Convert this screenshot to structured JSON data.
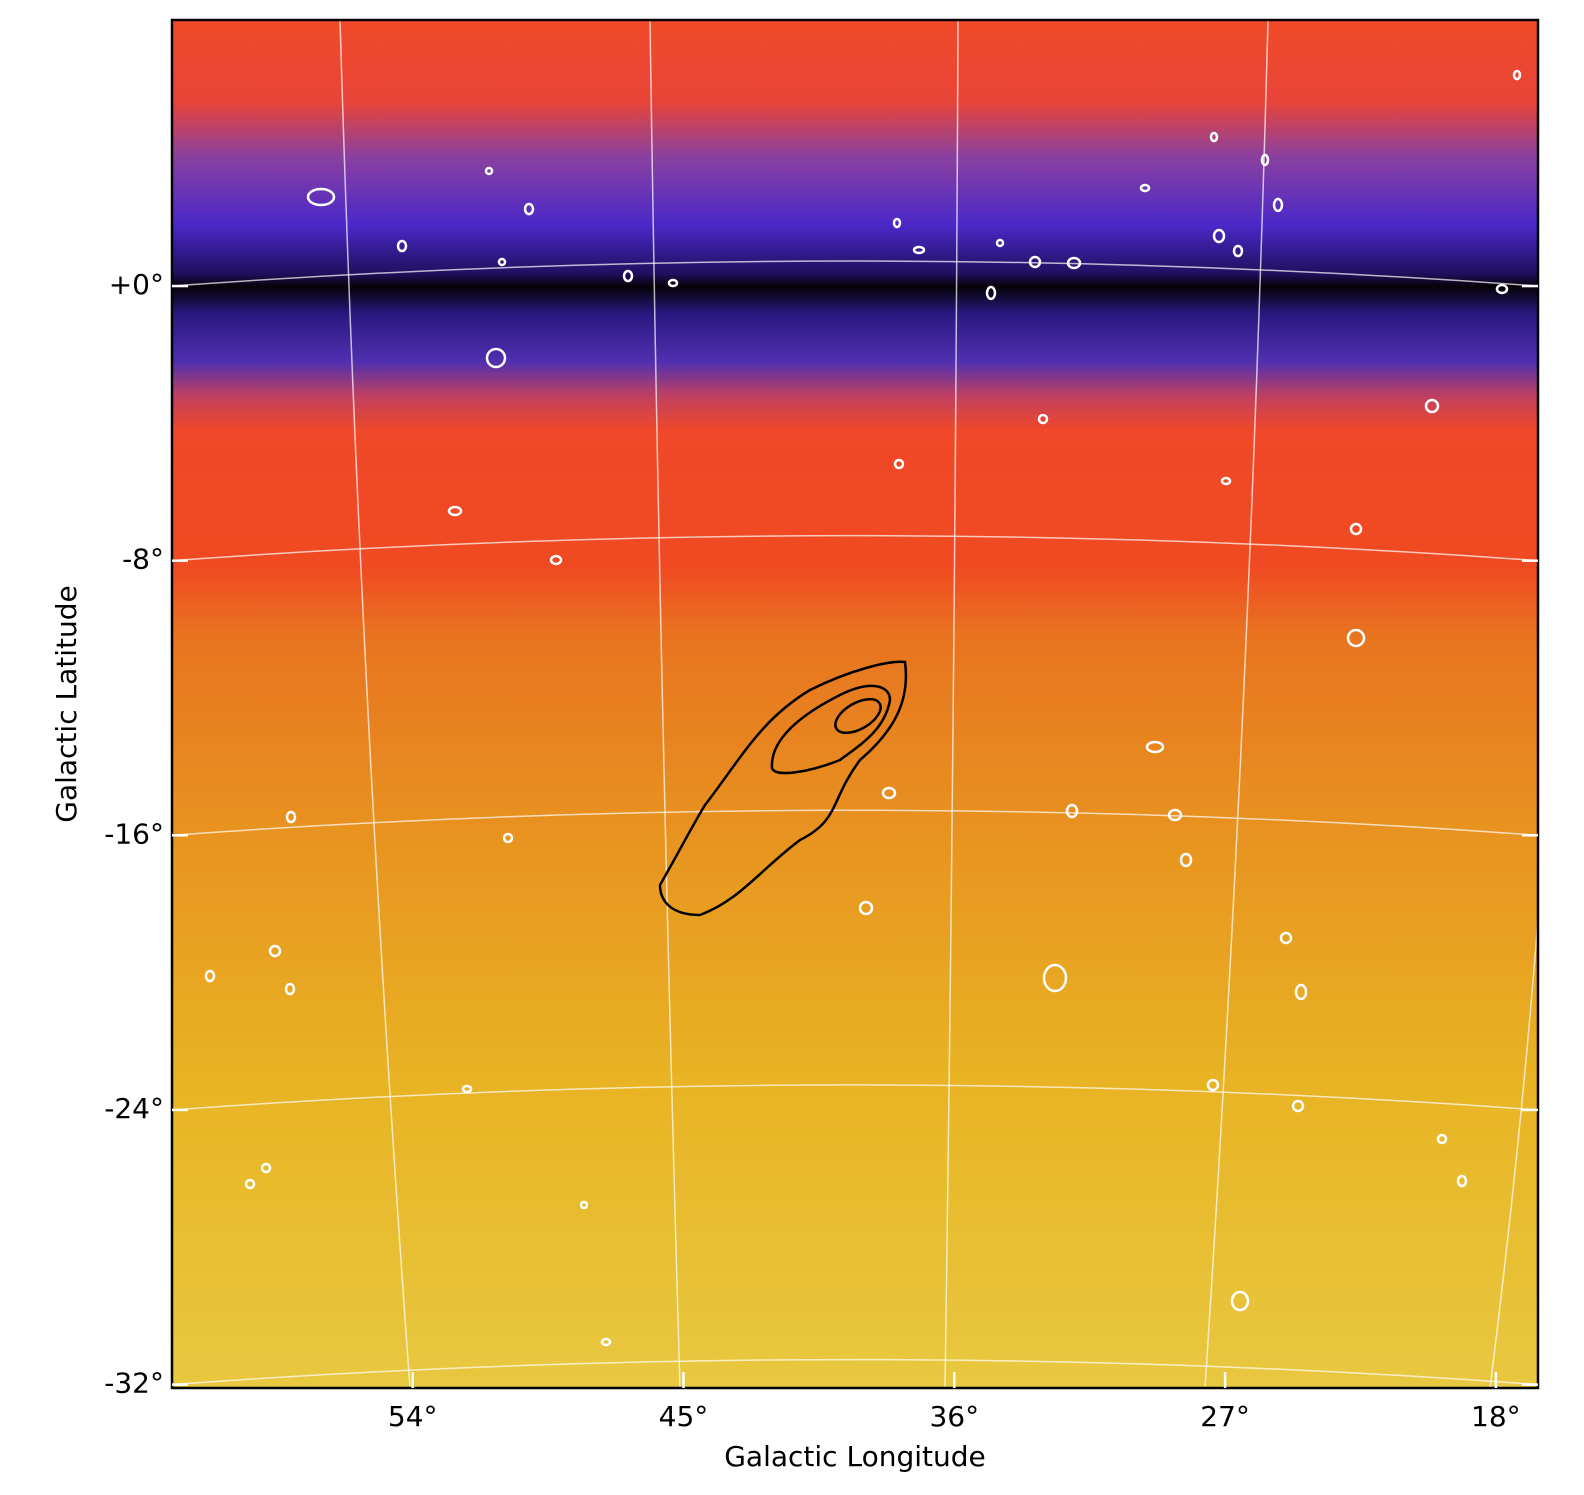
{
  "chart_data": {
    "type": "map",
    "xlabel": "Galactic Longitude",
    "ylabel": "Galactic Latitude",
    "xlim": [
      62,
      16.6
    ],
    "ylim": [
      -32.1,
      7.75
    ],
    "xticks": [
      {
        "value": 54,
        "label": "54°"
      },
      {
        "value": 45,
        "label": "45°"
      },
      {
        "value": 36,
        "label": "36°"
      },
      {
        "value": 27,
        "label": "27°"
      },
      {
        "value": 18,
        "label": "18°"
      }
    ],
    "yticks": [
      {
        "value": 0,
        "label": "+0°"
      },
      {
        "value": -8,
        "label": "-8°"
      },
      {
        "value": -16,
        "label": "-16°"
      },
      {
        "value": -24,
        "label": "-24°"
      },
      {
        "value": -32,
        "label": "-32°"
      }
    ],
    "grid": true
  }
}
